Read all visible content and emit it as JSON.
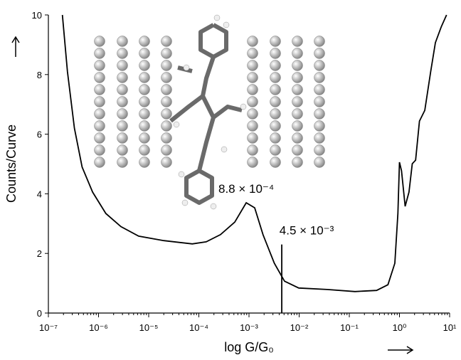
{
  "chart_data": {
    "type": "line",
    "xlabel": "log G/G₀",
    "ylabel": "Counts/Curve",
    "xscale": "log",
    "xlim": [
      1e-07,
      10
    ],
    "ylim": [
      0,
      10
    ],
    "xticks": [
      {
        "value": 1e-07,
        "label": "10⁻⁷"
      },
      {
        "value": 1e-06,
        "label": "10⁻⁶"
      },
      {
        "value": 1e-05,
        "label": "10⁻⁵"
      },
      {
        "value": 0.0001,
        "label": "10⁻⁴"
      },
      {
        "value": 0.001,
        "label": "10⁻³"
      },
      {
        "value": 0.01,
        "label": "10⁻²"
      },
      {
        "value": 0.1,
        "label": "10⁻¹"
      },
      {
        "value": 1,
        "label": "10⁰"
      },
      {
        "value": 10,
        "label": "10¹"
      }
    ],
    "yticks": [
      0,
      2,
      4,
      6,
      8,
      10
    ],
    "series": [
      {
        "color": "#000000",
        "x": [
          1.9e-07,
          2.4e-07,
          3.3e-07,
          4.7e-07,
          7.6e-07,
          1.4e-06,
          2.8e-06,
          6.3e-06,
          2e-05,
          7.4e-05,
          0.00014,
          0.00027,
          0.00052,
          0.00088,
          0.0013,
          0.0019,
          0.0032,
          0.0051,
          0.0098,
          0.036,
          0.13,
          0.35,
          0.59,
          0.81,
          0.93,
          1.0,
          1.1,
          1.3,
          1.55,
          1.8,
          2.1,
          2.5,
          3.2,
          4.2,
          5.2,
          6.8,
          8.7
        ],
        "values": [
          10,
          8.1,
          6.2,
          4.9,
          4.06,
          3.34,
          2.9,
          2.58,
          2.43,
          2.32,
          2.39,
          2.63,
          3.05,
          3.7,
          3.53,
          2.63,
          1.67,
          1.07,
          0.84,
          0.79,
          0.72,
          0.76,
          0.95,
          1.67,
          3.34,
          5.06,
          4.77,
          3.58,
          4.06,
          5.01,
          5.13,
          6.44,
          6.8,
          8.1,
          9.07,
          9.6,
          10
        ]
      }
    ],
    "annotations": [
      {
        "text": "8.8 × 10⁻⁴",
        "x": 0.00088,
        "y": 3.7
      },
      {
        "text": "4.5 × 10⁻³",
        "x": 0.0045,
        "y": 2.3
      }
    ],
    "vlines": [
      {
        "x": 0.0045,
        "y": 2.3
      }
    ]
  }
}
